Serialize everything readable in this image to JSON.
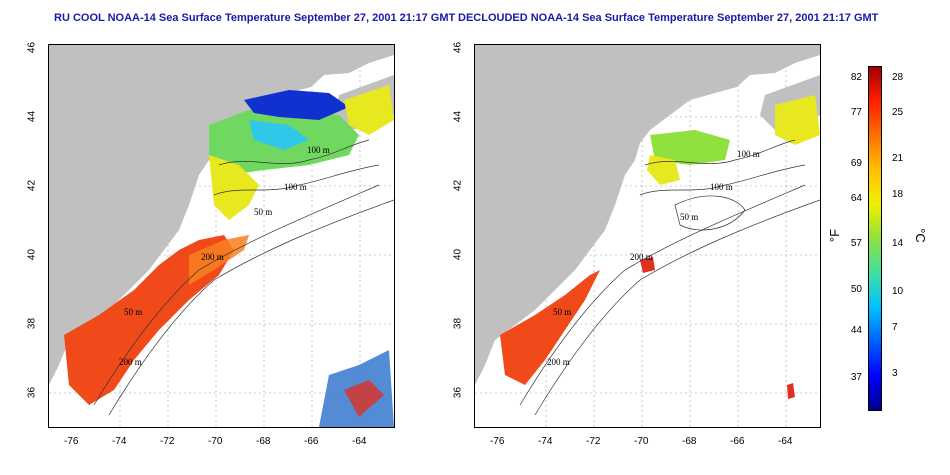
{
  "titles": {
    "left": "RU COOL NOAA-14 Sea Surface Temperature September 27, 2001 21:17 GMT",
    "right": "DECLOUDED NOAA-14 Sea Surface Temperature September 27, 2001 21:17 GMT"
  },
  "axes": {
    "x_ticks": [
      "-76",
      "-74",
      "-72",
      "-70",
      "-68",
      "-66",
      "-64"
    ],
    "y_ticks": [
      "46",
      "44",
      "42",
      "40",
      "38",
      "36"
    ],
    "lon_range": [
      -77.5,
      -63.0
    ],
    "lat_range": [
      35.0,
      46.0
    ]
  },
  "contour_labels": {
    "left": [
      "100 m",
      "100 m",
      "50 m",
      "200 m",
      "50 m",
      "200 m"
    ],
    "right": [
      "100 m",
      "100 m",
      "50 m",
      "200 m",
      "50 m",
      "200 m"
    ]
  },
  "colorbar": {
    "f_ticks": [
      "82",
      "77",
      "69",
      "64",
      "57",
      "50",
      "44",
      "37"
    ],
    "c_ticks": [
      "28",
      "25",
      "21",
      "18",
      "14",
      "10",
      "7",
      "3"
    ],
    "f_unit": "°F",
    "c_unit": "°C"
  },
  "colors": {
    "land": "#c0c0c0",
    "title": "#1a1aa6",
    "warm": "#f04010",
    "cold": "#0020c0"
  }
}
